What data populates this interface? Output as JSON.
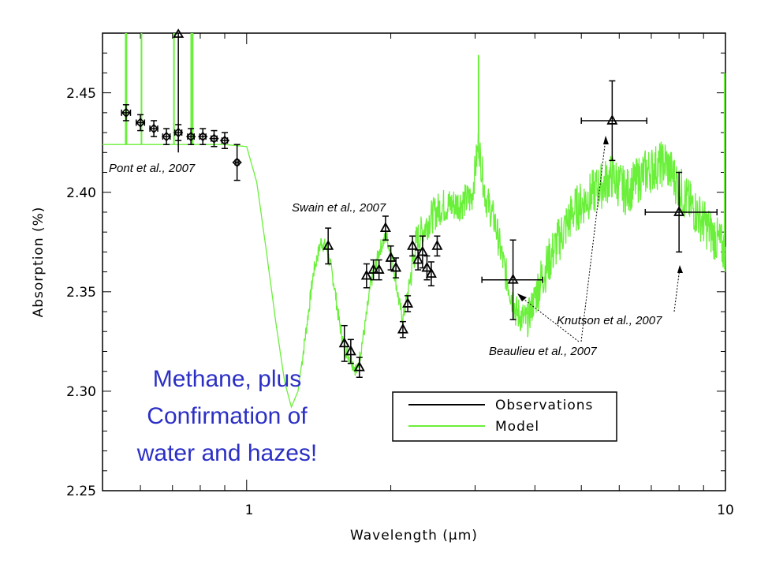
{
  "chart_data": {
    "type": "scatter",
    "xlabel": "Wavelength (μm)",
    "ylabel": "Absorption (%)",
    "x_scale": "log",
    "xlim": [
      0.5,
      10
    ],
    "ylim": [
      2.25,
      2.48
    ],
    "x_ticks": [
      "1",
      "10"
    ],
    "y_ticks": [
      "2.25",
      "2.30",
      "2.35",
      "2.40",
      "2.45"
    ],
    "legend": {
      "position": "bottom-right",
      "entries": [
        "Observations",
        "Model"
      ]
    },
    "colors": {
      "observations": "#000000",
      "model": "#6af03a",
      "headline": "#2b2fc4"
    },
    "series": [
      {
        "name": "Observations",
        "group": "Pont et al., 2007",
        "marker": "diamond",
        "points": [
          {
            "x": 0.56,
            "y": 2.44,
            "yerr": 0.004,
            "xerr": 0.012
          },
          {
            "x": 0.6,
            "y": 2.435,
            "yerr": 0.004,
            "xerr": 0.012
          },
          {
            "x": 0.64,
            "y": 2.432,
            "yerr": 0.004,
            "xerr": 0.012
          },
          {
            "x": 0.68,
            "y": 2.428,
            "yerr": 0.004,
            "xerr": 0.012
          },
          {
            "x": 0.72,
            "y": 2.43,
            "yerr": 0.004,
            "xerr": 0.012
          },
          {
            "x": 0.765,
            "y": 2.428,
            "yerr": 0.004,
            "xerr": 0.012
          },
          {
            "x": 0.81,
            "y": 2.428,
            "yerr": 0.004,
            "xerr": 0.012
          },
          {
            "x": 0.855,
            "y": 2.427,
            "yerr": 0.004,
            "xerr": 0.012
          },
          {
            "x": 0.9,
            "y": 2.426,
            "yerr": 0.004,
            "xerr": 0.012
          },
          {
            "x": 0.955,
            "y": 2.415,
            "yerr": 0.009,
            "xerr": 0.008
          }
        ]
      },
      {
        "name": "Observations",
        "group": "Swain et al., 2007",
        "marker": "triangle",
        "points": [
          {
            "x": 1.48,
            "y": 2.373,
            "yerr": 0.009
          },
          {
            "x": 1.6,
            "y": 2.324,
            "yerr": 0.009
          },
          {
            "x": 1.65,
            "y": 2.32,
            "yerr": 0.006
          },
          {
            "x": 1.72,
            "y": 2.312,
            "yerr": 0.005
          },
          {
            "x": 1.78,
            "y": 2.358,
            "yerr": 0.006
          },
          {
            "x": 1.84,
            "y": 2.361,
            "yerr": 0.005
          },
          {
            "x": 1.89,
            "y": 2.361,
            "yerr": 0.005
          },
          {
            "x": 1.95,
            "y": 2.382,
            "yerr": 0.006
          },
          {
            "x": 2.0,
            "y": 2.367,
            "yerr": 0.006
          },
          {
            "x": 2.05,
            "y": 2.362,
            "yerr": 0.005
          },
          {
            "x": 2.12,
            "y": 2.331,
            "yerr": 0.004
          },
          {
            "x": 2.17,
            "y": 2.344,
            "yerr": 0.004
          },
          {
            "x": 2.22,
            "y": 2.373,
            "yerr": 0.005
          },
          {
            "x": 2.28,
            "y": 2.366,
            "yerr": 0.005
          },
          {
            "x": 2.33,
            "y": 2.37,
            "yerr": 0.008
          },
          {
            "x": 2.38,
            "y": 2.362,
            "yerr": 0.006
          },
          {
            "x": 2.43,
            "y": 2.359,
            "yerr": 0.006
          },
          {
            "x": 2.5,
            "y": 2.373,
            "yerr": 0.005
          }
        ]
      },
      {
        "name": "Observations",
        "group": "Beaulieu et al., 2007",
        "marker": "triangle",
        "points": [
          {
            "x": 3.6,
            "y": 2.356,
            "yerr": 0.02,
            "xerr_lo": 0.5,
            "xerr_hi": 0.55
          }
        ]
      },
      {
        "name": "Observations",
        "group": "Knutson et al., 2007",
        "marker": "triangle",
        "points": [
          {
            "x": 5.8,
            "y": 2.436,
            "yerr": 0.02,
            "xerr_lo": 0.8,
            "xerr_hi": 1.05
          },
          {
            "x": 8.0,
            "y": 2.39,
            "yerr": 0.02,
            "xerr_lo": 1.2,
            "xerr_hi": 1.6
          }
        ]
      }
    ],
    "model": {
      "name": "Model",
      "knots": [
        [
          0.5,
          2.424
        ],
        [
          0.56,
          2.424
        ],
        [
          0.7,
          2.424
        ],
        [
          0.9,
          2.424
        ],
        [
          1.0,
          2.423
        ],
        [
          1.05,
          2.405
        ],
        [
          1.1,
          2.37
        ],
        [
          1.15,
          2.335
        ],
        [
          1.2,
          2.305
        ],
        [
          1.24,
          2.292
        ],
        [
          1.28,
          2.3
        ],
        [
          1.33,
          2.33
        ],
        [
          1.38,
          2.36
        ],
        [
          1.43,
          2.375
        ],
        [
          1.47,
          2.372
        ],
        [
          1.52,
          2.355
        ],
        [
          1.56,
          2.335
        ],
        [
          1.6,
          2.322
        ],
        [
          1.65,
          2.316
        ],
        [
          1.7,
          2.31
        ],
        [
          1.76,
          2.33
        ],
        [
          1.82,
          2.355
        ],
        [
          1.9,
          2.372
        ],
        [
          1.96,
          2.378
        ],
        [
          2.02,
          2.365
        ],
        [
          2.08,
          2.345
        ],
        [
          2.12,
          2.336
        ],
        [
          2.18,
          2.352
        ],
        [
          2.26,
          2.375
        ],
        [
          2.4,
          2.386
        ],
        [
          2.55,
          2.393
        ],
        [
          2.75,
          2.394
        ],
        [
          2.95,
          2.397
        ],
        [
          3.05,
          2.425
        ],
        [
          3.15,
          2.398
        ],
        [
          3.3,
          2.385
        ],
        [
          3.45,
          2.362
        ],
        [
          3.65,
          2.34
        ],
        [
          3.85,
          2.335
        ],
        [
          4.1,
          2.355
        ],
        [
          4.4,
          2.372
        ],
        [
          4.8,
          2.39
        ],
        [
          5.3,
          2.4
        ],
        [
          5.8,
          2.408
        ],
        [
          6.2,
          2.4
        ],
        [
          6.8,
          2.41
        ],
        [
          7.5,
          2.415
        ],
        [
          8.2,
          2.398
        ],
        [
          9.0,
          2.385
        ],
        [
          10.0,
          2.37
        ]
      ],
      "spikes": [
        [
          0.603,
          2.48
        ],
        [
          0.705,
          2.48
        ],
        [
          0.766,
          2.48
        ],
        [
          0.77,
          2.48
        ],
        [
          3.05,
          2.469
        ],
        [
          9.96,
          2.46
        ]
      ]
    }
  },
  "annotations": {
    "pont": "Pont et al., 2007",
    "swain": "Swain et al., 2007",
    "knutson": "Knutson et al., 2007",
    "beaulieu": "Beaulieu et al., 2007"
  },
  "headline": [
    "Methane, plus",
    "Confirmation of",
    "water and hazes!"
  ],
  "legend_labels": {
    "observations": "Observations",
    "model": "Model"
  }
}
